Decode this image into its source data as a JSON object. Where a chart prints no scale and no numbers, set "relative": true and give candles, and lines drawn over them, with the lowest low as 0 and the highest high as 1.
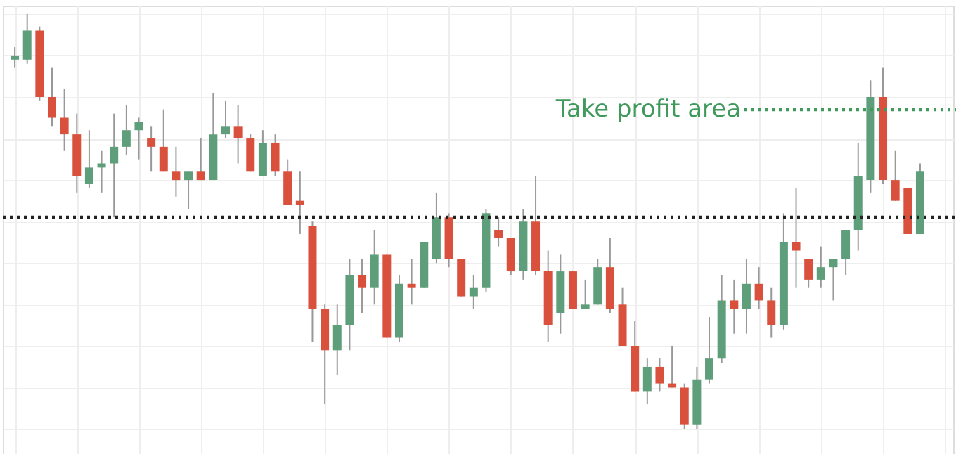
{
  "chart_data": {
    "type": "candlestick",
    "relative": true,
    "categories": [
      null,
      null,
      null,
      null,
      null,
      null,
      null,
      null,
      null,
      null,
      null,
      null,
      null,
      null,
      null,
      null,
      null,
      null,
      null,
      null,
      null,
      null,
      null,
      null,
      null,
      null,
      null,
      null,
      null,
      null,
      null,
      null,
      null,
      null,
      null,
      null,
      null,
      null,
      null,
      null,
      null,
      null,
      null,
      null,
      null,
      null,
      null,
      null,
      null,
      null,
      null,
      null,
      null,
      null,
      null,
      null,
      null,
      null,
      null,
      null,
      null,
      null,
      null,
      null,
      null,
      null,
      null,
      null,
      null,
      null,
      null,
      null,
      null,
      null
    ],
    "ohlc": [
      [
        0.89,
        0.92,
        0.87,
        0.9
      ],
      [
        0.89,
        1.0,
        0.88,
        0.96
      ],
      [
        0.96,
        0.97,
        0.79,
        0.8
      ],
      [
        0.8,
        0.87,
        0.73,
        0.75
      ],
      [
        0.75,
        0.82,
        0.67,
        0.71
      ],
      [
        0.71,
        0.76,
        0.57,
        0.61
      ],
      [
        0.59,
        0.72,
        0.58,
        0.63
      ],
      [
        0.63,
        0.67,
        0.57,
        0.64
      ],
      [
        0.64,
        0.76,
        0.51,
        0.68
      ],
      [
        0.68,
        0.78,
        0.66,
        0.72
      ],
      [
        0.72,
        0.75,
        0.65,
        0.74
      ],
      [
        0.7,
        0.73,
        0.62,
        0.68
      ],
      [
        0.68,
        0.77,
        0.62,
        0.62
      ],
      [
        0.62,
        0.68,
        0.56,
        0.6
      ],
      [
        0.6,
        0.62,
        0.53,
        0.62
      ],
      [
        0.62,
        0.7,
        0.6,
        0.6
      ],
      [
        0.6,
        0.81,
        0.6,
        0.71
      ],
      [
        0.71,
        0.79,
        0.7,
        0.73
      ],
      [
        0.73,
        0.78,
        0.64,
        0.7
      ],
      [
        0.7,
        0.71,
        0.62,
        0.62
      ],
      [
        0.61,
        0.72,
        0.61,
        0.69
      ],
      [
        0.69,
        0.71,
        0.61,
        0.62
      ],
      [
        0.62,
        0.65,
        0.54,
        0.54
      ],
      [
        0.55,
        0.62,
        0.47,
        0.54
      ],
      [
        0.49,
        0.5,
        0.21,
        0.29
      ],
      [
        0.29,
        0.3,
        0.06,
        0.19
      ],
      [
        0.19,
        0.3,
        0.13,
        0.25
      ],
      [
        0.25,
        0.41,
        0.19,
        0.37
      ],
      [
        0.37,
        0.41,
        0.28,
        0.34
      ],
      [
        0.34,
        0.48,
        0.3,
        0.42
      ],
      [
        0.42,
        0.42,
        0.22,
        0.22
      ],
      [
        0.22,
        0.37,
        0.21,
        0.35
      ],
      [
        0.35,
        0.41,
        0.3,
        0.34
      ],
      [
        0.34,
        0.45,
        0.34,
        0.45
      ],
      [
        0.41,
        0.57,
        0.4,
        0.51
      ],
      [
        0.51,
        0.52,
        0.39,
        0.41
      ],
      [
        0.41,
        0.41,
        0.32,
        0.32
      ],
      [
        0.32,
        0.37,
        0.29,
        0.34
      ],
      [
        0.34,
        0.53,
        0.33,
        0.52
      ],
      [
        0.48,
        0.51,
        0.44,
        0.46
      ],
      [
        0.46,
        0.46,
        0.37,
        0.38
      ],
      [
        0.38,
        0.53,
        0.36,
        0.5
      ],
      [
        0.5,
        0.61,
        0.37,
        0.38
      ],
      [
        0.38,
        0.43,
        0.21,
        0.25
      ],
      [
        0.28,
        0.42,
        0.23,
        0.38
      ],
      [
        0.38,
        0.38,
        0.29,
        0.29
      ],
      [
        0.29,
        0.36,
        0.29,
        0.3
      ],
      [
        0.3,
        0.41,
        0.3,
        0.39
      ],
      [
        0.39,
        0.46,
        0.28,
        0.29
      ],
      [
        0.3,
        0.34,
        0.2,
        0.2
      ],
      [
        0.2,
        0.26,
        0.09,
        0.09
      ],
      [
        0.09,
        0.17,
        0.06,
        0.15
      ],
      [
        0.15,
        0.17,
        0.09,
        0.11
      ],
      [
        0.11,
        0.2,
        0.1,
        0.1
      ],
      [
        0.1,
        0.11,
        0.0,
        0.01
      ],
      [
        0.01,
        0.15,
        0.0,
        0.12
      ],
      [
        0.12,
        0.27,
        0.11,
        0.17
      ],
      [
        0.17,
        0.37,
        0.16,
        0.31
      ],
      [
        0.31,
        0.36,
        0.23,
        0.29
      ],
      [
        0.29,
        0.41,
        0.23,
        0.35
      ],
      [
        0.35,
        0.39,
        0.29,
        0.31
      ],
      [
        0.31,
        0.34,
        0.22,
        0.25
      ],
      [
        0.25,
        0.52,
        0.24,
        0.45
      ],
      [
        0.45,
        0.58,
        0.34,
        0.43
      ],
      [
        0.41,
        0.41,
        0.34,
        0.36
      ],
      [
        0.36,
        0.44,
        0.34,
        0.39
      ],
      [
        0.39,
        0.41,
        0.31,
        0.41
      ],
      [
        0.41,
        0.48,
        0.37,
        0.48
      ],
      [
        0.48,
        0.69,
        0.43,
        0.61
      ],
      [
        0.6,
        0.84,
        0.57,
        0.8
      ],
      [
        0.8,
        0.87,
        0.59,
        0.6
      ],
      [
        0.6,
        0.67,
        0.55,
        0.55
      ],
      [
        0.58,
        0.58,
        0.47,
        0.47
      ],
      [
        0.47,
        0.64,
        0.47,
        0.62
      ]
    ],
    "colors": [
      "#5e9e7b",
      "#5e9e7b",
      "#d9513d",
      "#d9513d",
      "#d9513d",
      "#d9513d",
      "#5e9e7b",
      "#5e9e7b",
      "#5e9e7b",
      "#5e9e7b",
      "#5e9e7b",
      "#d9513d",
      "#d9513d",
      "#d9513d",
      "#5e9e7b",
      "#d9513d",
      "#5e9e7b",
      "#5e9e7b",
      "#d9513d",
      "#d9513d",
      "#5e9e7b",
      "#d9513d",
      "#d9513d",
      "#d9513d",
      "#d9513d",
      "#d9513d",
      "#5e9e7b",
      "#5e9e7b",
      "#d9513d",
      "#5e9e7b",
      "#d9513d",
      "#5e9e7b",
      "#d9513d",
      "#5e9e7b",
      "#5e9e7b",
      "#d9513d",
      "#d9513d",
      "#5e9e7b",
      "#5e9e7b",
      "#d9513d",
      "#d9513d",
      "#5e9e7b",
      "#d9513d",
      "#d9513d",
      "#5e9e7b",
      "#d9513d",
      "#5e9e7b",
      "#5e9e7b",
      "#d9513d",
      "#d9513d",
      "#d9513d",
      "#5e9e7b",
      "#d9513d",
      "#d9513d",
      "#d9513d",
      "#5e9e7b",
      "#5e9e7b",
      "#5e9e7b",
      "#d9513d",
      "#5e9e7b",
      "#d9513d",
      "#d9513d",
      "#5e9e7b",
      "#d9513d",
      "#d9513d",
      "#5e9e7b",
      "#5e9e7b",
      "#5e9e7b",
      "#5e9e7b",
      "#5e9e7b",
      "#d9513d",
      "#d9513d",
      "#d9513d",
      "#5e9e7b"
    ],
    "ref_lines": [
      {
        "axis": "y",
        "value": 0.51,
        "color": "#222222",
        "line_style": "dotted"
      },
      {
        "axis": "y",
        "value": 0.77,
        "label": "Take profit area",
        "color": "#3f9a5c",
        "line_style": "dotted"
      }
    ],
    "grid": true,
    "tick_labels": false
  }
}
